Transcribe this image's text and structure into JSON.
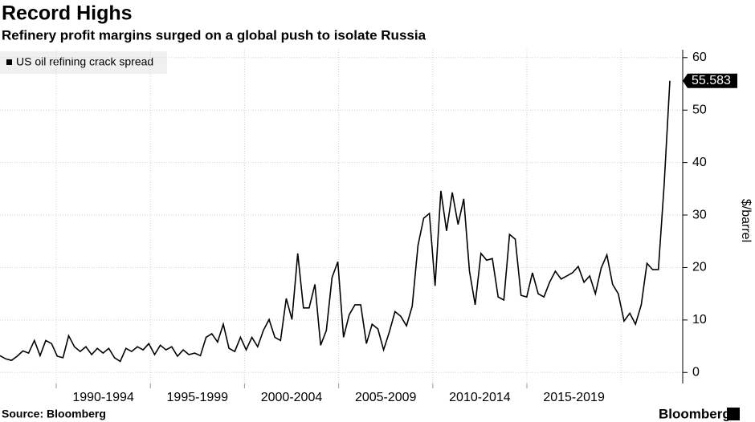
{
  "chart_data": {
    "type": "line",
    "title": "Record Highs",
    "subtitle": "Refinery profit margins surged on a global push to isolate Russia",
    "y_axis_label": "$/barrel",
    "source": "Source: Bloomberg",
    "brand": "Bloomberg",
    "x_axis_labels": [
      "1990-1994",
      "1995-1999",
      "2000-2004",
      "2005-2009",
      "2010-2014",
      "2015-2019"
    ],
    "ylim": [
      -2.1,
      61.5
    ],
    "yticks": [
      0,
      10,
      20,
      30,
      40,
      50,
      60
    ],
    "grid": true,
    "legend_position": "top-left",
    "series": [
      {
        "name": "US oil refining crack spread",
        "color": "#000000",
        "values": [
          3.2,
          2.6,
          2.3,
          3.1,
          4.1,
          3.7,
          6.1,
          3.2,
          6.1,
          5.5,
          3.1,
          2.8,
          7,
          4.9,
          4,
          4.9,
          3.4,
          4.6,
          3.7,
          4.6,
          2.8,
          2.1,
          4.6,
          4,
          4.9,
          4.3,
          5.5,
          3.4,
          5.2,
          4.3,
          4.9,
          3.1,
          4.3,
          3.4,
          3.7,
          3.2,
          6.7,
          7.4,
          5.8,
          9.2,
          4.6,
          4,
          6.7,
          4.3,
          6.7,
          4.9,
          8,
          10.1,
          6.7,
          6.1,
          14.1,
          10.1,
          22.7,
          12.3,
          12.3,
          16.8,
          5.2,
          8,
          18.1,
          21.1,
          6.7,
          11,
          12.9,
          12.9,
          5.5,
          9.2,
          8.3,
          4.3,
          7.7,
          11.6,
          10.7,
          8.9,
          12.6,
          24.2,
          29.4,
          30.3,
          16.5,
          34.6,
          27,
          34.3,
          28.2,
          33.1,
          19.3,
          12.9,
          22.7,
          21.4,
          21.7,
          14.4,
          13.8,
          26.3,
          25.4,
          14.7,
          14.4,
          19,
          15,
          14.4,
          17.2,
          19.3,
          17.8,
          18.4,
          19,
          20.2,
          17.2,
          18.4,
          15,
          19.9,
          22.4,
          16.8,
          15,
          9.8,
          11.3,
          9.2,
          12.9,
          20.8,
          19.6,
          19.6,
          35.8,
          55.583
        ]
      }
    ]
  }
}
